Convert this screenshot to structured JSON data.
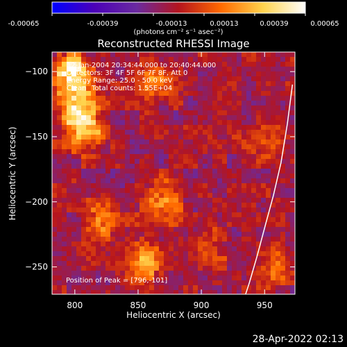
{
  "colorbar": {
    "min_label": "-0.00065",
    "labels": [
      "-0.00065",
      "-0.00039",
      "-0.00013",
      "0.00013",
      "0.00039",
      "0.00065"
    ],
    "unit_label": "(photons cm⁻² s⁻¹ asec⁻²)",
    "colors": [
      "#0000ff",
      "#4b00b8",
      "#6a2aa0",
      "#b5141e",
      "#ff6a00",
      "#ffd34d",
      "#ffffff"
    ]
  },
  "title": "Reconstructed RHESSI Image",
  "annotations": {
    "time_range": "12-Jan-2004 20:34:44.000 to 20:40:44.000",
    "detectors": "Detectors: 3F 4F 5F 6F 7F 8F, Att 0",
    "energy": "Energy Range: 25.0 - 50.0 keV",
    "method": "Clean",
    "total_counts": "Total counts: 1.55E+04",
    "peak": "Position of Peak = [796,-101]"
  },
  "footer_timestamp": "28-Apr-2022 02:13",
  "chart_data": {
    "type": "heatmap",
    "title": "Reconstructed RHESSI Image",
    "xlabel": "Heliocentric X (arcsec)",
    "ylabel": "Heliocentric Y (arcsec)",
    "xlim": [
      782,
      974
    ],
    "ylim": [
      -271,
      -85
    ],
    "xticks": [
      800,
      850,
      900,
      950
    ],
    "yticks": [
      -100,
      -150,
      -200,
      -250
    ],
    "color_range": [
      -0.00065,
      0.00065
    ],
    "peak_position": [
      796,
      -101
    ],
    "limb_curve": {
      "x": [
        972,
        968,
        963,
        957,
        950,
        944,
        938,
        935
      ],
      "y": [
        -110,
        -140,
        -170,
        -195,
        -220,
        -242,
        -262,
        -271
      ]
    },
    "bright_sources": [
      {
        "x": 796,
        "y": -101,
        "intensity": 0.00065
      },
      {
        "x": 802,
        "y": -125,
        "intensity": 0.00055
      },
      {
        "x": 808,
        "y": -146,
        "intensity": 0.0005
      },
      {
        "x": 857,
        "y": -245,
        "intensity": 0.00045
      },
      {
        "x": 870,
        "y": -200,
        "intensity": 0.00035
      },
      {
        "x": 865,
        "y": -108,
        "intensity": 0.0003
      },
      {
        "x": 822,
        "y": -215,
        "intensity": 0.00028
      },
      {
        "x": 905,
        "y": -235,
        "intensity": 0.00025
      },
      {
        "x": 950,
        "y": -150,
        "intensity": 0.00022
      },
      {
        "x": 955,
        "y": -250,
        "intensity": 0.00025
      }
    ]
  }
}
